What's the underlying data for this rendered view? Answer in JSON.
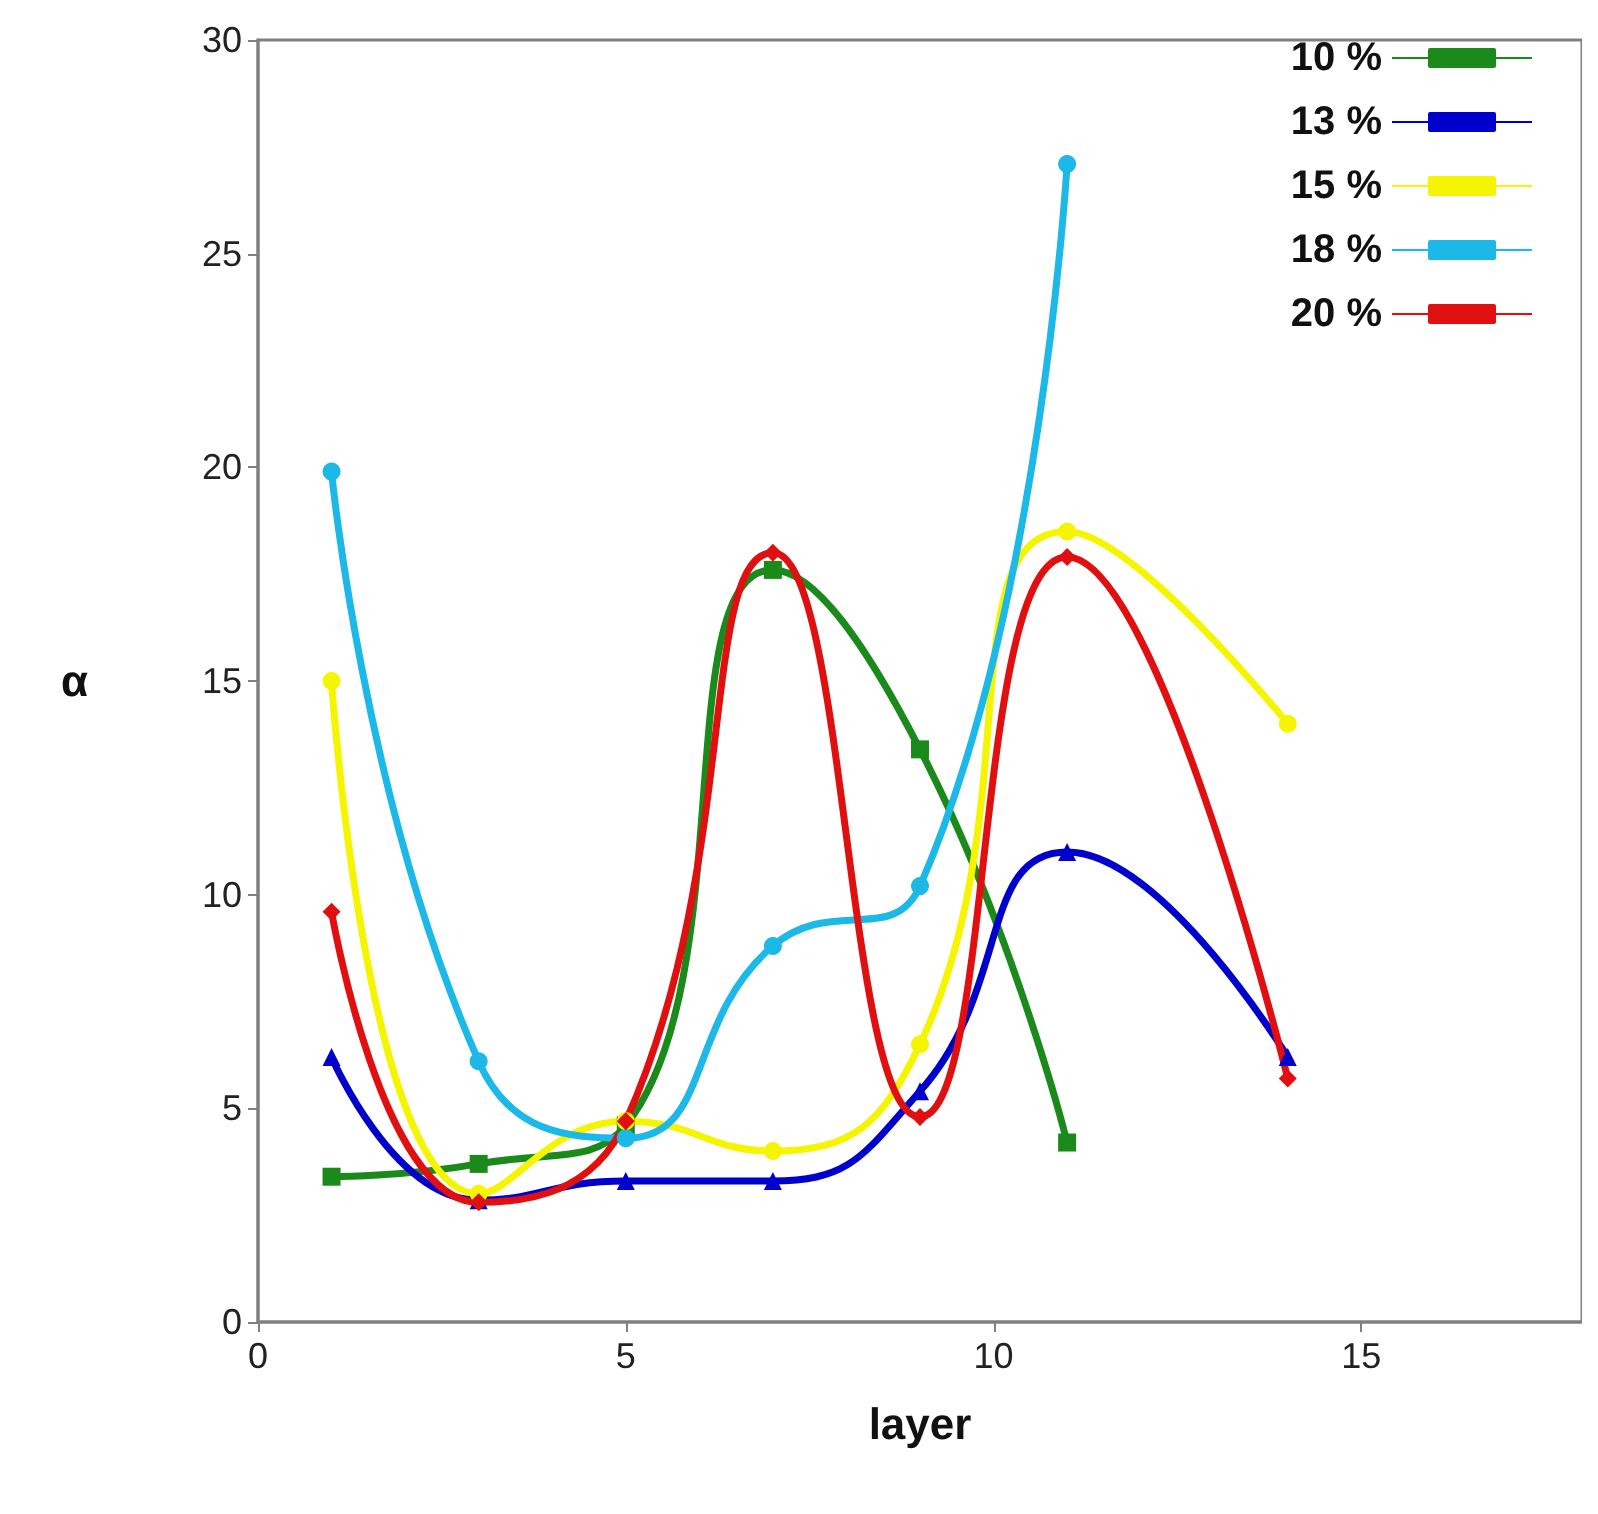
{
  "chart_data": {
    "type": "line",
    "xlabel": "layer",
    "ylabel": "α",
    "xlim": [
      0,
      18
    ],
    "xticks": [
      0,
      5,
      10,
      15
    ],
    "ylim": [
      0,
      30
    ],
    "yticks": [
      0,
      5,
      10,
      15,
      20,
      25,
      30
    ],
    "grid": false,
    "legend": "top right",
    "line_style": "solid",
    "series": [
      {
        "name": "10 %",
        "color": "#1a8a1a",
        "marker": "square",
        "x": [
          1,
          3,
          5,
          7,
          9,
          11
        ],
        "values": [
          3.4,
          3.7,
          4.6,
          17.6,
          13.4,
          4.2
        ]
      },
      {
        "name": "13 %",
        "color": "#0000cc",
        "marker": "triangle",
        "x": [
          1,
          3,
          5,
          7,
          9,
          11,
          14
        ],
        "values": [
          6.2,
          2.85,
          3.3,
          3.3,
          5.4,
          11.0,
          6.2
        ]
      },
      {
        "name": "15 %",
        "color": "#f5f500",
        "marker": "circle",
        "x": [
          1,
          3,
          5,
          7,
          9,
          11,
          14
        ],
        "values": [
          15.0,
          3.0,
          4.7,
          4.0,
          6.5,
          18.5,
          14.0
        ]
      },
      {
        "name": "18 %",
        "color": "#1cb8e8",
        "marker": "circle",
        "x": [
          1,
          3,
          5,
          7,
          9,
          11
        ],
        "values": [
          19.9,
          6.1,
          4.3,
          8.8,
          10.2,
          27.1
        ]
      },
      {
        "name": "20 %",
        "color": "#e01010",
        "marker": "diamond",
        "x": [
          1,
          3,
          5,
          7,
          9,
          11,
          14
        ],
        "values": [
          9.6,
          2.8,
          4.7,
          18.0,
          4.8,
          17.9,
          5.7
        ]
      }
    ]
  }
}
